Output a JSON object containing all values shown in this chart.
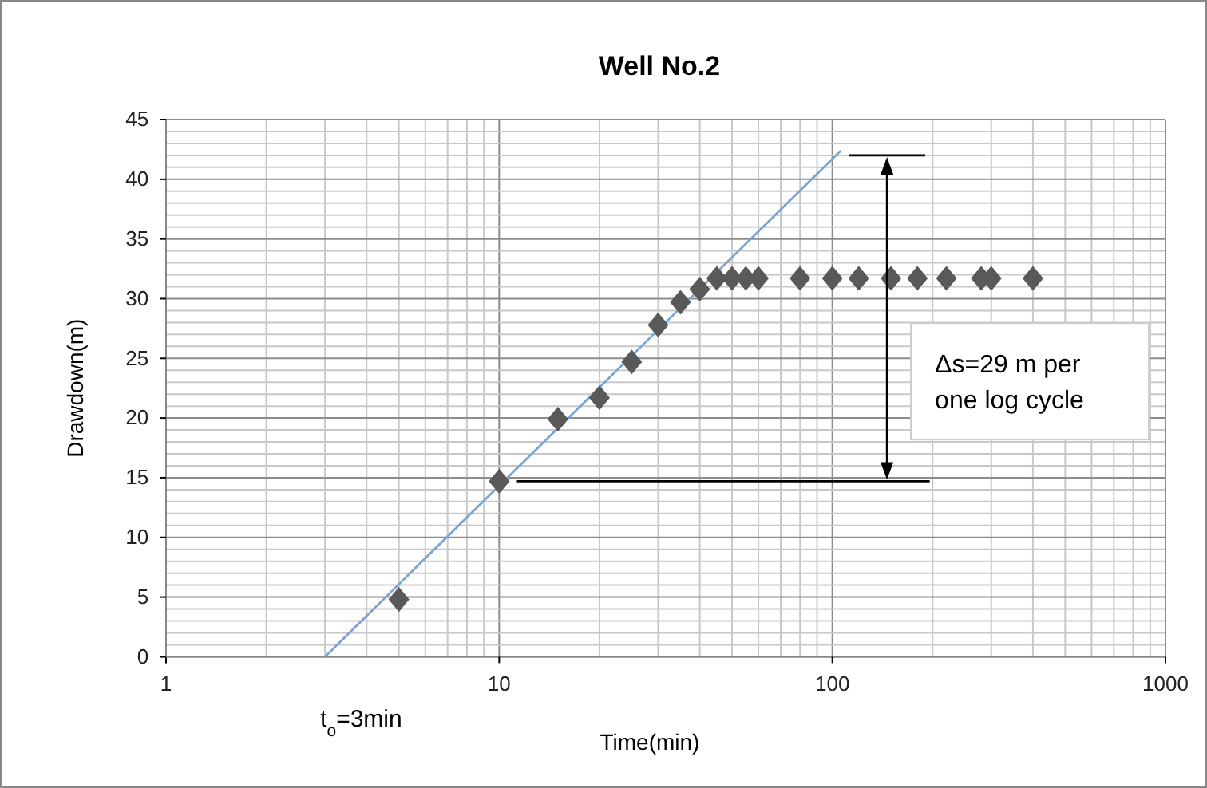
{
  "chart_data": {
    "type": "scatter",
    "title": "Well No.2",
    "xlabel": "Time(min)",
    "ylabel": "Drawdown(m)",
    "log": "x",
    "grid": true,
    "xlim": [
      1,
      1000
    ],
    "xticks": [
      1,
      10,
      100,
      1000
    ],
    "ylim": [
      0,
      45
    ],
    "yticks": [
      0,
      5,
      10,
      15,
      20,
      25,
      30,
      35,
      40,
      45
    ],
    "series": [
      {
        "type": "line",
        "marker": "none",
        "color": "#7ba3d4",
        "x": [
          3,
          106
        ],
        "values": [
          0,
          42.4
        ]
      },
      {
        "type": "line",
        "marker": "none",
        "color": "#000000",
        "x": [
          112,
          190
        ],
        "values": [
          42,
          42
        ]
      },
      {
        "type": "line",
        "marker": "none",
        "color": "#000000",
        "x": [
          11.3,
          196
        ],
        "values": [
          14.7,
          14.7
        ]
      },
      {
        "marker": "diamond",
        "color": "#595959",
        "x": [
          5,
          10,
          15,
          20,
          25,
          30,
          35,
          40,
          45,
          50,
          55,
          60,
          80,
          100,
          120,
          150,
          180,
          220,
          280,
          300,
          400
        ],
        "values": [
          4.8,
          14.7,
          19.9,
          21.7,
          24.7,
          27.8,
          29.7,
          30.8,
          31.7,
          31.7,
          31.7,
          31.7,
          31.7,
          31.7,
          31.7,
          31.7,
          31.7,
          31.7,
          31.7,
          31.7,
          31.7
        ]
      }
    ],
    "annotations": [
      "Δs=29 m per one log cycle",
      "t$_{o}$=3min"
    ]
  }
}
